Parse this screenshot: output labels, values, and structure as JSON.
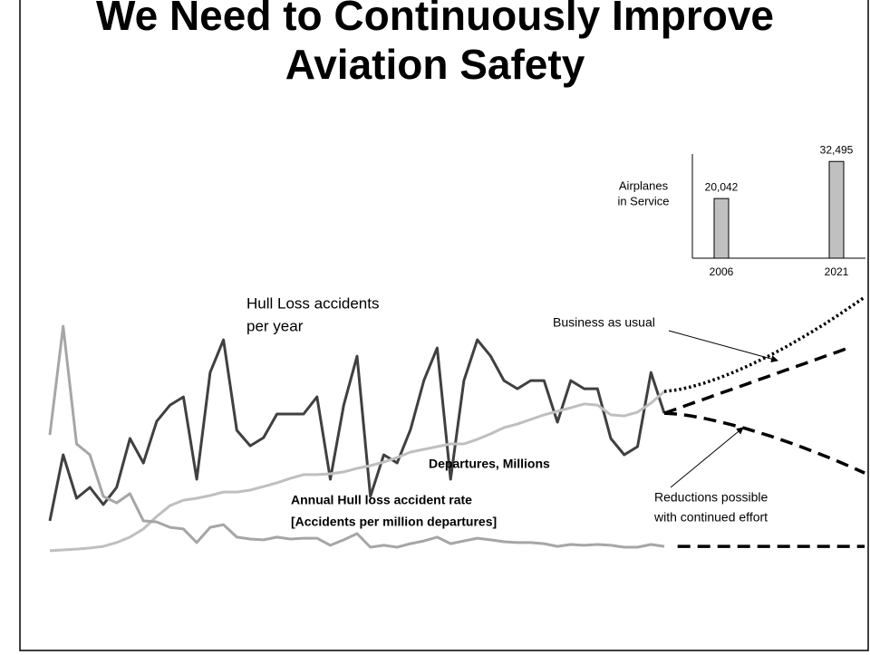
{
  "chart_data": [
    {
      "type": "line",
      "title": "We Need to Continuously Improve Aviation Safety",
      "ylim": [
        0,
        110
      ],
      "annotations": [
        {
          "lines": [
            "Hull Loss accidents",
            "per year"
          ]
        },
        {
          "lines": [
            "Business as usual"
          ]
        },
        {
          "lines": [
            "Departures, Millions"
          ]
        },
        {
          "lines": [
            "Annual Hull loss accident rate",
            "[Accidents per million departures]"
          ]
        },
        {
          "lines": [
            "Reductions possible",
            "with continued effort"
          ]
        }
      ],
      "series": [
        {
          "color": "#404040",
          "style": "solid",
          "values": [
            21.7,
            46.0,
            30.0,
            34.0,
            27.7,
            34.0,
            52.0,
            43.0,
            58.3,
            64.3,
            67.3,
            37.0,
            76.3,
            88.3,
            55.0,
            49.3,
            52.3,
            61.0,
            61.0,
            61.0,
            67.3,
            37.0,
            64.3,
            82.3,
            30.7,
            46.0,
            43.0,
            55.3,
            73.3,
            85.3,
            37.0,
            73.3,
            88.3,
            82.3,
            73.3,
            70.3,
            73.3,
            73.3,
            58.0,
            73.3,
            70.3,
            70.3,
            52.0,
            46.0,
            49.0,
            76.3,
            61.3,
            null,
            null,
            null,
            null,
            null,
            null,
            null,
            null,
            null,
            null,
            null,
            null,
            null,
            null,
            null
          ]
        },
        {
          "color": "#bfbfbf",
          "style": "solid",
          "values": [
            10.7,
            11.0,
            11.3,
            11.7,
            12.3,
            13.7,
            15.7,
            18.7,
            23.3,
            27.3,
            29.3,
            30.0,
            31.0,
            32.3,
            32.3,
            33.0,
            34.3,
            35.7,
            37.3,
            38.7,
            38.7,
            39.0,
            39.7,
            41.0,
            42.0,
            43.3,
            45.0,
            47.0,
            48.0,
            49.0,
            50.0,
            50.0,
            51.7,
            53.7,
            56.0,
            57.3,
            59.0,
            60.7,
            62.0,
            63.3,
            64.7,
            64.3,
            60.7,
            60.3,
            61.7,
            65.0,
            69.3,
            null,
            null,
            null,
            null,
            null,
            null,
            null,
            null,
            null,
            null,
            null,
            null,
            null,
            null,
            null
          ]
        },
        {
          "color": "#a6a6a6",
          "style": "solid",
          "values": [
            53.3,
            93.3,
            50.0,
            46.0,
            30.7,
            28.3,
            31.7,
            21.7,
            21.3,
            19.3,
            18.7,
            13.7,
            19.3,
            20.3,
            15.7,
            15.0,
            14.7,
            15.7,
            15.0,
            15.3,
            15.3,
            12.7,
            14.7,
            17.0,
            12.0,
            12.7,
            12.0,
            13.3,
            14.3,
            15.7,
            13.3,
            14.3,
            15.3,
            14.7,
            14.0,
            13.7,
            13.7,
            13.3,
            12.3,
            13.0,
            12.7,
            13.0,
            12.7,
            12.0,
            12.0,
            13.0,
            12.3,
            null,
            null,
            null,
            null,
            null,
            null,
            null,
            null,
            null,
            null,
            null,
            null,
            null,
            null,
            null
          ]
        },
        {
          "color": "#000000",
          "style": "dotted",
          "values": [
            null,
            null,
            null,
            null,
            null,
            null,
            null,
            null,
            null,
            null,
            null,
            null,
            null,
            null,
            null,
            null,
            null,
            null,
            null,
            null,
            null,
            null,
            null,
            null,
            null,
            null,
            null,
            null,
            null,
            null,
            null,
            null,
            null,
            null,
            null,
            null,
            null,
            null,
            null,
            null,
            null,
            null,
            null,
            null,
            null,
            null,
            69.3,
            69.9,
            71.0,
            72.4,
            74.1,
            76.0,
            78.1,
            80.4,
            82.8,
            85.4,
            88.2,
            91.1,
            94.1,
            97.3,
            100.6,
            104.0
          ]
        },
        {
          "color": "#000000",
          "style": "dashed",
          "values": [
            null,
            null,
            null,
            null,
            null,
            null,
            null,
            null,
            null,
            null,
            null,
            null,
            null,
            null,
            null,
            null,
            null,
            null,
            null,
            null,
            null,
            null,
            null,
            null,
            null,
            null,
            null,
            null,
            null,
            null,
            null,
            null,
            null,
            null,
            null,
            null,
            null,
            null,
            null,
            null,
            null,
            null,
            null,
            null,
            null,
            null,
            61.3,
            63.0,
            64.8,
            66.5,
            68.3,
            70.0,
            71.7,
            73.5,
            75.2,
            77.0,
            78.7,
            80.4,
            82.2,
            83.9,
            85.7,
            null
          ]
        },
        {
          "color": "#000000",
          "style": "dashed",
          "values": [
            null,
            null,
            null,
            null,
            null,
            null,
            null,
            null,
            null,
            null,
            null,
            null,
            null,
            null,
            null,
            null,
            null,
            null,
            null,
            null,
            null,
            null,
            null,
            null,
            null,
            null,
            null,
            null,
            null,
            null,
            null,
            null,
            null,
            null,
            null,
            null,
            null,
            null,
            null,
            null,
            null,
            null,
            null,
            null,
            null,
            null,
            61.3,
            61.0,
            60.3,
            59.4,
            58.3,
            57.1,
            55.8,
            54.3,
            52.8,
            51.1,
            49.4,
            47.5,
            45.6,
            43.6,
            41.5,
            39.3
          ]
        },
        {
          "color": "#000000",
          "style": "dashed",
          "values": [
            null,
            null,
            null,
            null,
            null,
            null,
            null,
            null,
            null,
            null,
            null,
            null,
            null,
            null,
            null,
            null,
            null,
            null,
            null,
            null,
            null,
            null,
            null,
            null,
            null,
            null,
            null,
            null,
            null,
            null,
            null,
            null,
            null,
            null,
            null,
            null,
            null,
            null,
            null,
            null,
            null,
            null,
            null,
            null,
            null,
            null,
            null,
            12.3,
            12.3,
            12.3,
            12.3,
            12.3,
            12.3,
            12.3,
            12.3,
            12.3,
            12.3,
            12.3,
            12.3,
            12.3,
            12.3,
            12.3
          ]
        }
      ]
    },
    {
      "type": "bar",
      "ylabel": [
        "Airplanes",
        "in Service"
      ],
      "categories": [
        "2006",
        "2021"
      ],
      "values": [
        20042,
        32495
      ],
      "value_labels": [
        "20,042",
        "32,495"
      ],
      "color": "#c0c0c0",
      "ylim": [
        0,
        35000
      ]
    }
  ]
}
